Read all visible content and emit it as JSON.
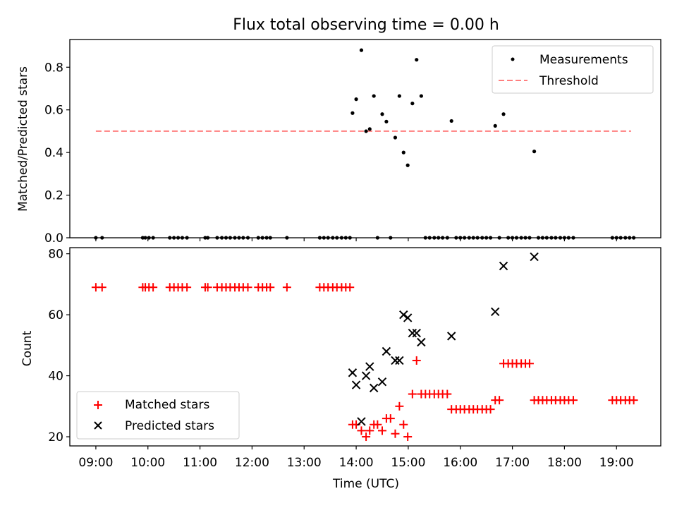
{
  "title": "Flux total observing time = 0.00 h",
  "xlabel": "Time (UTC)",
  "x_ticks": [
    {
      "t": 9,
      "label": "09:00"
    },
    {
      "t": 10,
      "label": "10:00"
    },
    {
      "t": 11,
      "label": "11:00"
    },
    {
      "t": 12,
      "label": "12:00"
    },
    {
      "t": 13,
      "label": "13:00"
    },
    {
      "t": 14,
      "label": "14:00"
    },
    {
      "t": 15,
      "label": "15:00"
    },
    {
      "t": 16,
      "label": "16:00"
    },
    {
      "t": 17,
      "label": "17:00"
    },
    {
      "t": 18,
      "label": "18:00"
    },
    {
      "t": 19,
      "label": "19:00"
    }
  ],
  "colors": {
    "measurement": "#000000",
    "threshold": "#ff7f7f",
    "matched": "#ff0000",
    "predicted": "#000000"
  },
  "chart_data": [
    {
      "type": "scatter",
      "ylabel": "Matched/Predicted stars",
      "xlim": [
        8.5,
        19.85
      ],
      "ylim": [
        0,
        0.93
      ],
      "y_ticks": [
        {
          "v": 0,
          "label": "0.0"
        },
        {
          "v": 0.2,
          "label": "0.2"
        },
        {
          "v": 0.4,
          "label": "0.4"
        },
        {
          "v": 0.6,
          "label": "0.6"
        },
        {
          "v": 0.8,
          "label": "0.8"
        }
      ],
      "legend": {
        "position": "top-right",
        "entries": [
          "Measurements",
          "Threshold"
        ]
      },
      "threshold": {
        "value": 0.5,
        "x_range": [
          9.0,
          19.28
        ],
        "style": "dashed"
      },
      "series": [
        {
          "name": "Measurements",
          "marker": "dot",
          "points": [
            [
              9.0,
              0
            ],
            [
              9.12,
              0
            ],
            [
              9.9,
              0
            ],
            [
              9.95,
              0
            ],
            [
              10.02,
              0
            ],
            [
              10.1,
              0
            ],
            [
              10.42,
              0
            ],
            [
              10.5,
              0
            ],
            [
              10.58,
              0
            ],
            [
              10.66,
              0
            ],
            [
              10.75,
              0
            ],
            [
              11.1,
              0
            ],
            [
              11.15,
              0
            ],
            [
              11.33,
              0
            ],
            [
              11.42,
              0
            ],
            [
              11.5,
              0
            ],
            [
              11.58,
              0
            ],
            [
              11.67,
              0
            ],
            [
              11.75,
              0
            ],
            [
              11.83,
              0
            ],
            [
              11.92,
              0
            ],
            [
              12.12,
              0
            ],
            [
              12.2,
              0
            ],
            [
              12.28,
              0
            ],
            [
              12.35,
              0
            ],
            [
              12.67,
              0
            ],
            [
              13.3,
              0
            ],
            [
              13.38,
              0
            ],
            [
              13.46,
              0
            ],
            [
              13.55,
              0
            ],
            [
              13.63,
              0
            ],
            [
              13.72,
              0
            ],
            [
              13.8,
              0
            ],
            [
              13.88,
              0
            ],
            [
              13.93,
              0.585
            ],
            [
              14.0,
              0.65
            ],
            [
              14.1,
              0.88
            ],
            [
              14.19,
              0.5
            ],
            [
              14.26,
              0.51
            ],
            [
              14.34,
              0.665
            ],
            [
              14.41,
              0
            ],
            [
              14.5,
              0.58
            ],
            [
              14.58,
              0.545
            ],
            [
              14.66,
              0
            ],
            [
              14.75,
              0.47
            ],
            [
              14.83,
              0.665
            ],
            [
              14.91,
              0.4
            ],
            [
              14.99,
              0.34
            ],
            [
              15.08,
              0.63
            ],
            [
              15.16,
              0.835
            ],
            [
              15.25,
              0.665
            ],
            [
              15.33,
              0
            ],
            [
              15.41,
              0
            ],
            [
              15.5,
              0
            ],
            [
              15.58,
              0
            ],
            [
              15.66,
              0
            ],
            [
              15.75,
              0
            ],
            [
              15.83,
              0.548
            ],
            [
              15.92,
              0
            ],
            [
              16.0,
              0
            ],
            [
              16.08,
              0
            ],
            [
              16.17,
              0
            ],
            [
              16.25,
              0
            ],
            [
              16.33,
              0
            ],
            [
              16.42,
              0
            ],
            [
              16.5,
              0
            ],
            [
              16.58,
              0
            ],
            [
              16.67,
              0.525
            ],
            [
              16.75,
              0
            ],
            [
              16.83,
              0.58
            ],
            [
              16.92,
              0
            ],
            [
              17.0,
              0
            ],
            [
              17.08,
              0
            ],
            [
              17.17,
              0
            ],
            [
              17.25,
              0
            ],
            [
              17.33,
              0
            ],
            [
              17.42,
              0.405
            ],
            [
              17.5,
              0
            ],
            [
              17.58,
              0
            ],
            [
              17.66,
              0
            ],
            [
              17.75,
              0
            ],
            [
              17.83,
              0
            ],
            [
              17.92,
              0
            ],
            [
              18.0,
              0
            ],
            [
              18.08,
              0
            ],
            [
              18.17,
              0
            ],
            [
              18.92,
              0
            ],
            [
              19.0,
              0
            ],
            [
              19.08,
              0
            ],
            [
              19.17,
              0
            ],
            [
              19.25,
              0
            ],
            [
              19.33,
              0
            ]
          ]
        }
      ]
    },
    {
      "type": "scatter",
      "ylabel": "Count",
      "xlim": [
        8.5,
        19.85
      ],
      "ylim": [
        17,
        82
      ],
      "y_ticks": [
        {
          "v": 20,
          "label": "20"
        },
        {
          "v": 40,
          "label": "40"
        },
        {
          "v": 60,
          "label": "60"
        },
        {
          "v": 80,
          "label": "80"
        }
      ],
      "legend": {
        "position": "bottom-left",
        "entries": [
          "Matched stars",
          "Predicted stars"
        ]
      },
      "series": [
        {
          "name": "Matched stars",
          "marker": "plus",
          "points": [
            [
              9.0,
              69
            ],
            [
              9.12,
              69
            ],
            [
              9.9,
              69
            ],
            [
              9.95,
              69
            ],
            [
              10.02,
              69
            ],
            [
              10.1,
              69
            ],
            [
              10.42,
              69
            ],
            [
              10.5,
              69
            ],
            [
              10.58,
              69
            ],
            [
              10.66,
              69
            ],
            [
              10.75,
              69
            ],
            [
              11.1,
              69
            ],
            [
              11.15,
              69
            ],
            [
              11.33,
              69
            ],
            [
              11.42,
              69
            ],
            [
              11.5,
              69
            ],
            [
              11.58,
              69
            ],
            [
              11.67,
              69
            ],
            [
              11.75,
              69
            ],
            [
              11.83,
              69
            ],
            [
              11.92,
              69
            ],
            [
              12.12,
              69
            ],
            [
              12.2,
              69
            ],
            [
              12.28,
              69
            ],
            [
              12.35,
              69
            ],
            [
              12.67,
              69
            ],
            [
              13.3,
              69
            ],
            [
              13.38,
              69
            ],
            [
              13.46,
              69
            ],
            [
              13.55,
              69
            ],
            [
              13.63,
              69
            ],
            [
              13.72,
              69
            ],
            [
              13.8,
              69
            ],
            [
              13.88,
              69
            ],
            [
              13.93,
              24
            ],
            [
              14.0,
              24
            ],
            [
              14.1,
              22
            ],
            [
              14.19,
              20
            ],
            [
              14.26,
              22
            ],
            [
              14.34,
              24
            ],
            [
              14.41,
              24
            ],
            [
              14.5,
              22
            ],
            [
              14.58,
              26
            ],
            [
              14.66,
              26
            ],
            [
              14.75,
              21
            ],
            [
              14.83,
              30
            ],
            [
              14.91,
              24
            ],
            [
              14.99,
              20
            ],
            [
              15.08,
              34
            ],
            [
              15.16,
              45
            ],
            [
              15.25,
              34
            ],
            [
              15.33,
              34
            ],
            [
              15.41,
              34
            ],
            [
              15.5,
              34
            ],
            [
              15.58,
              34
            ],
            [
              15.66,
              34
            ],
            [
              15.75,
              34
            ],
            [
              15.83,
              29
            ],
            [
              15.92,
              29
            ],
            [
              16.0,
              29
            ],
            [
              16.08,
              29
            ],
            [
              16.17,
              29
            ],
            [
              16.25,
              29
            ],
            [
              16.33,
              29
            ],
            [
              16.42,
              29
            ],
            [
              16.5,
              29
            ],
            [
              16.58,
              29
            ],
            [
              16.67,
              32
            ],
            [
              16.75,
              32
            ],
            [
              16.83,
              44
            ],
            [
              16.92,
              44
            ],
            [
              17.0,
              44
            ],
            [
              17.08,
              44
            ],
            [
              17.17,
              44
            ],
            [
              17.25,
              44
            ],
            [
              17.33,
              44
            ],
            [
              17.42,
              32
            ],
            [
              17.5,
              32
            ],
            [
              17.58,
              32
            ],
            [
              17.66,
              32
            ],
            [
              17.75,
              32
            ],
            [
              17.83,
              32
            ],
            [
              17.92,
              32
            ],
            [
              18.0,
              32
            ],
            [
              18.08,
              32
            ],
            [
              18.17,
              32
            ],
            [
              18.92,
              32
            ],
            [
              19.0,
              32
            ],
            [
              19.08,
              32
            ],
            [
              19.17,
              32
            ],
            [
              19.25,
              32
            ],
            [
              19.33,
              32
            ]
          ]
        },
        {
          "name": "Predicted stars",
          "marker": "x",
          "points": [
            [
              13.93,
              41
            ],
            [
              14.0,
              37
            ],
            [
              14.1,
              25
            ],
            [
              14.19,
              40
            ],
            [
              14.26,
              43
            ],
            [
              14.34,
              36
            ],
            [
              14.5,
              38
            ],
            [
              14.58,
              48
            ],
            [
              14.75,
              45
            ],
            [
              14.83,
              45
            ],
            [
              14.91,
              60
            ],
            [
              14.99,
              59
            ],
            [
              15.08,
              54
            ],
            [
              15.16,
              54
            ],
            [
              15.25,
              51
            ],
            [
              15.83,
              53
            ],
            [
              16.67,
              61
            ],
            [
              16.83,
              76
            ],
            [
              17.42,
              79
            ]
          ]
        }
      ]
    }
  ]
}
